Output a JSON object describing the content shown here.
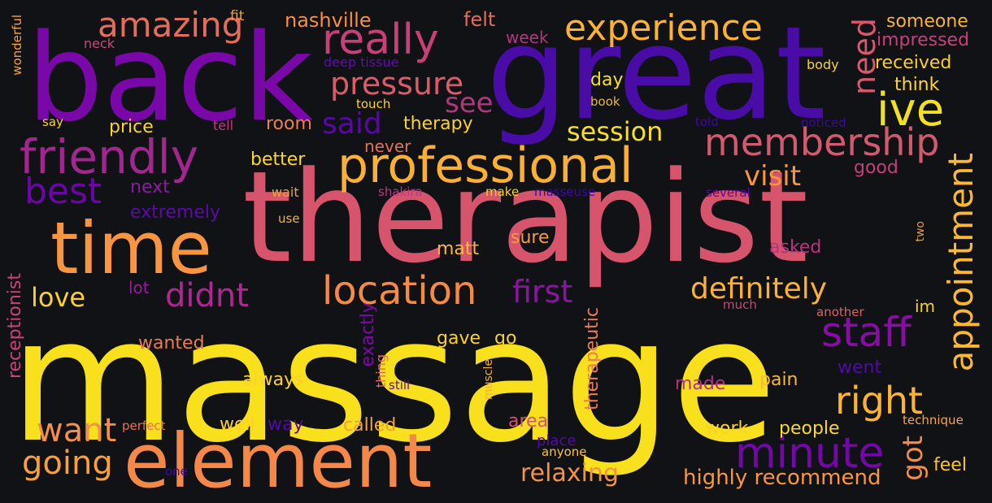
{
  "words": {
    "massage": "massage",
    "therapist": "therapist",
    "great": "great",
    "back": "back",
    "element": "element",
    "time": "time",
    "professional": "professional",
    "friendly": "friendly",
    "really": "really",
    "experience": "experience",
    "membership": "membership",
    "ive": "ive",
    "location": "location",
    "minute": "minute",
    "appointment": "appointment",
    "staff": "staff",
    "right": "right",
    "definitely": "definitely",
    "best": "best",
    "pressure": "pressure",
    "amazing": "amazing",
    "going": "going",
    "want": "want",
    "relaxing": "relaxing",
    "didnt": "didnt",
    "visit": "visit",
    "session": "session",
    "first": "first",
    "love": "love",
    "need": "need",
    "said": "said",
    "see": "see",
    "got": "got",
    "highly_recommend": "highly recommend",
    "receptionist": "receptionist",
    "nashville": "nashville",
    "felt": "felt",
    "week": "week",
    "someone": "someone",
    "impressed": "impressed",
    "received": "received",
    "think": "think",
    "day": "day",
    "book": "book",
    "body": "body",
    "fit": "fit",
    "neck": "neck",
    "wonderful": "wonderful",
    "deep_tissue": "deep tissue",
    "touch": "touch",
    "say": "say",
    "price": "price",
    "tell": "tell",
    "room": "room",
    "therapy": "therapy",
    "told": "told",
    "noticed": "noticed",
    "never": "never",
    "better": "better",
    "good": "good",
    "next": "next",
    "wait": "wait",
    "shakira": "shakira",
    "make": "make",
    "masseuse": "masseuse",
    "several": "several",
    "extremely": "extremely",
    "use": "use",
    "sure": "sure",
    "matt": "matt",
    "asked": "asked",
    "two": "two",
    "lot": "lot",
    "much": "much",
    "another": "another",
    "im": "im",
    "exactly": "exactly",
    "therapeutic": "therapeutic",
    "wanted": "wanted",
    "gave": "gave",
    "go": "go",
    "thing": "thing",
    "went": "went",
    "always": "always",
    "still": "still",
    "muscle": "muscle",
    "made": "made",
    "pain": "pain",
    "way": "way",
    "well": "well",
    "perfect": "perfect",
    "called": "called",
    "area": "area",
    "work": "work",
    "people": "people",
    "technique": "technique",
    "place": "place",
    "anyone": "anyone",
    "one": "one",
    "feel": "feel"
  },
  "colors": {
    "background": "#111216",
    "palette": "plasma (yellow, orange, pink, magenta, purple, indigo)"
  }
}
